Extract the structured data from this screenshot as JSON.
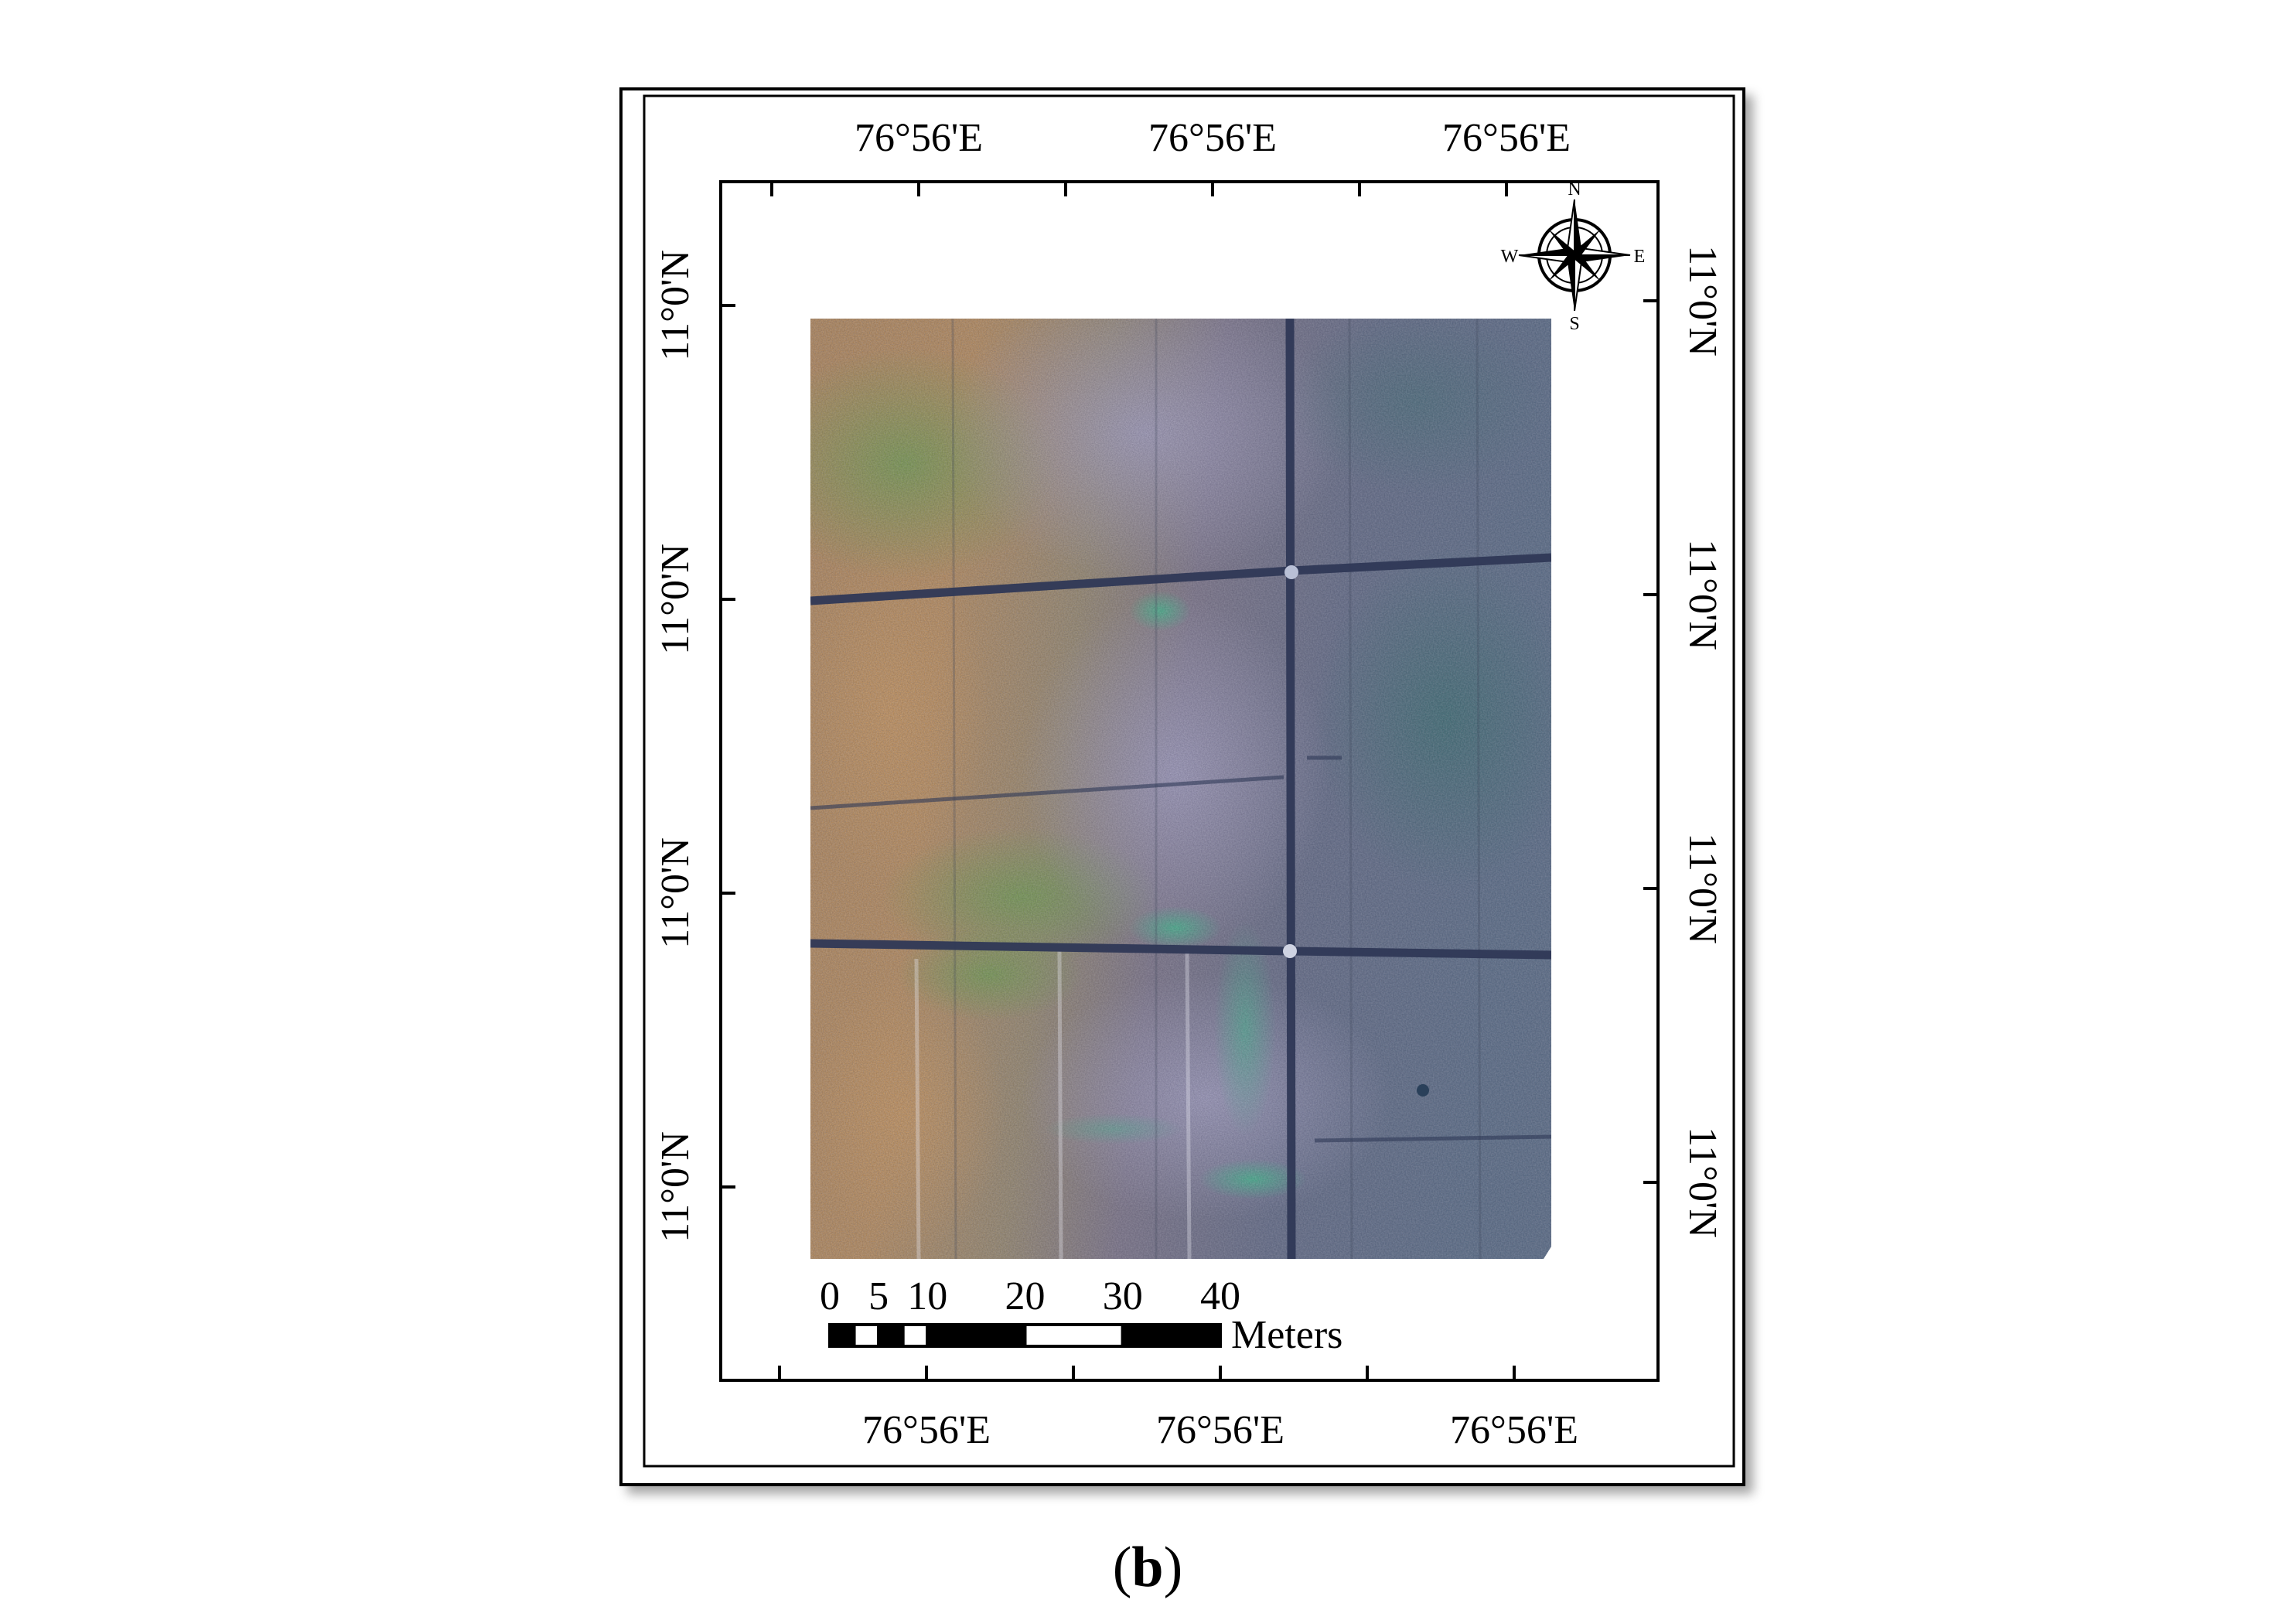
{
  "map": {
    "top_lon_labels": [
      "76°56'E",
      "76°56'E",
      "76°56'E"
    ],
    "bottom_lon_labels": [
      "76°56'E",
      "76°56'E",
      "76°56'E"
    ],
    "left_lat_labels": [
      "11°0'N",
      "11°0'N",
      "11°0'N",
      "11°0'N"
    ],
    "right_lat_labels": [
      "11°0'N",
      "11°0'N",
      "11°0'N",
      "11°0'N"
    ],
    "compass": {
      "n": "N",
      "e": "E",
      "s": "S",
      "w": "W"
    },
    "scale_bar": {
      "tick_labels": [
        "0",
        "5",
        "10",
        "20",
        "30",
        "40"
      ],
      "tick_values": [
        0,
        5,
        10,
        20,
        30,
        40
      ],
      "unit": "Meters"
    }
  },
  "caption": {
    "open": "(",
    "letter": "b",
    "close": ")"
  }
}
